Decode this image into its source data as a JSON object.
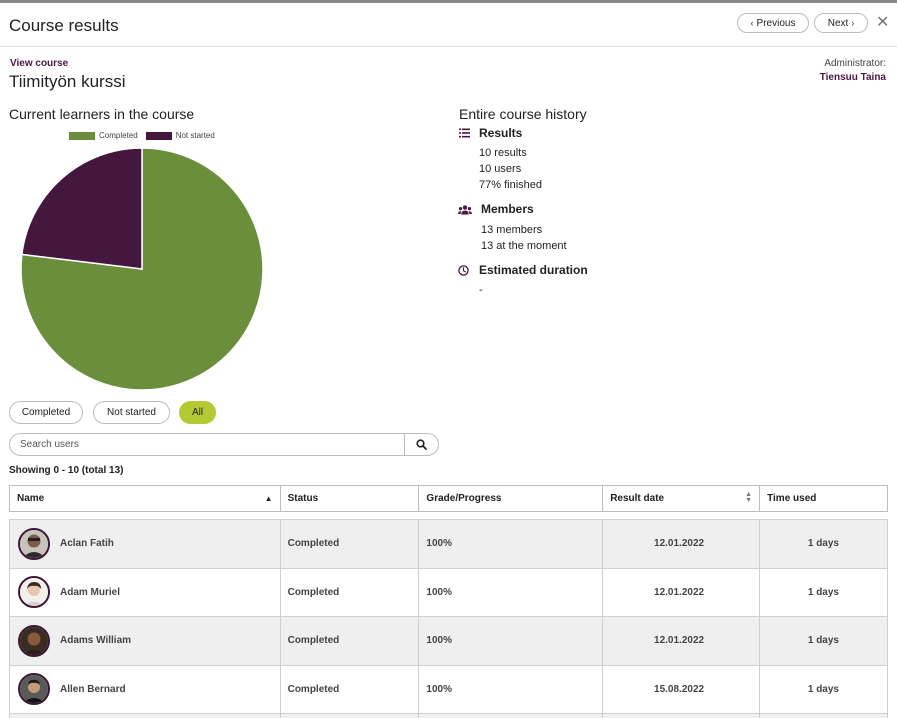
{
  "header": {
    "title": "Course results",
    "previous_label": "Previous",
    "next_label": "Next"
  },
  "course": {
    "view_link": "View course",
    "name": "Tiimityön kurssi",
    "admin_label": "Administrator:",
    "admin_name": "Tiensuu Taina"
  },
  "current": {
    "title": "Current learners in the course"
  },
  "chart_data": {
    "type": "pie",
    "legend": [
      "Completed",
      "Not started"
    ],
    "series": [
      {
        "name": "Completed",
        "value": 10,
        "color": "#6b8e3d"
      },
      {
        "name": "Not started",
        "value": 3,
        "color": "#44173f"
      }
    ]
  },
  "history": {
    "title": "Entire course history",
    "results_heading": "Results",
    "results_lines": [
      "10 results",
      "10 users",
      "77% finished"
    ],
    "members_heading": "Members",
    "members_lines": [
      "13 members",
      "13 at the moment"
    ],
    "duration_heading": "Estimated duration",
    "duration_value": "-"
  },
  "filters": {
    "completed": "Completed",
    "not_started": "Not started",
    "all": "All"
  },
  "search": {
    "placeholder": "Search users"
  },
  "showing": "Showing 0 - 10 (total 13)",
  "table": {
    "headers": {
      "name": "Name",
      "status": "Status",
      "grade": "Grade/Progress",
      "date": "Result date",
      "time": "Time used"
    },
    "rows": [
      {
        "name": "Aclan Fatih",
        "status": "Completed",
        "grade": "100%",
        "date": "12.01.2022",
        "time": "1 days"
      },
      {
        "name": "Adam Muriel",
        "status": "Completed",
        "grade": "100%",
        "date": "12.01.2022",
        "time": "1 days"
      },
      {
        "name": "Adams William",
        "status": "Completed",
        "grade": "100%",
        "date": "12.01.2022",
        "time": "1 days"
      },
      {
        "name": "Allen Bernard",
        "status": "Completed",
        "grade": "100%",
        "date": "15.08.2022",
        "time": "1 days"
      }
    ]
  },
  "colors": {
    "brand": "#4a1745",
    "accent": "#b5c935",
    "completed": "#6b8e3d",
    "not_started": "#44173f"
  }
}
